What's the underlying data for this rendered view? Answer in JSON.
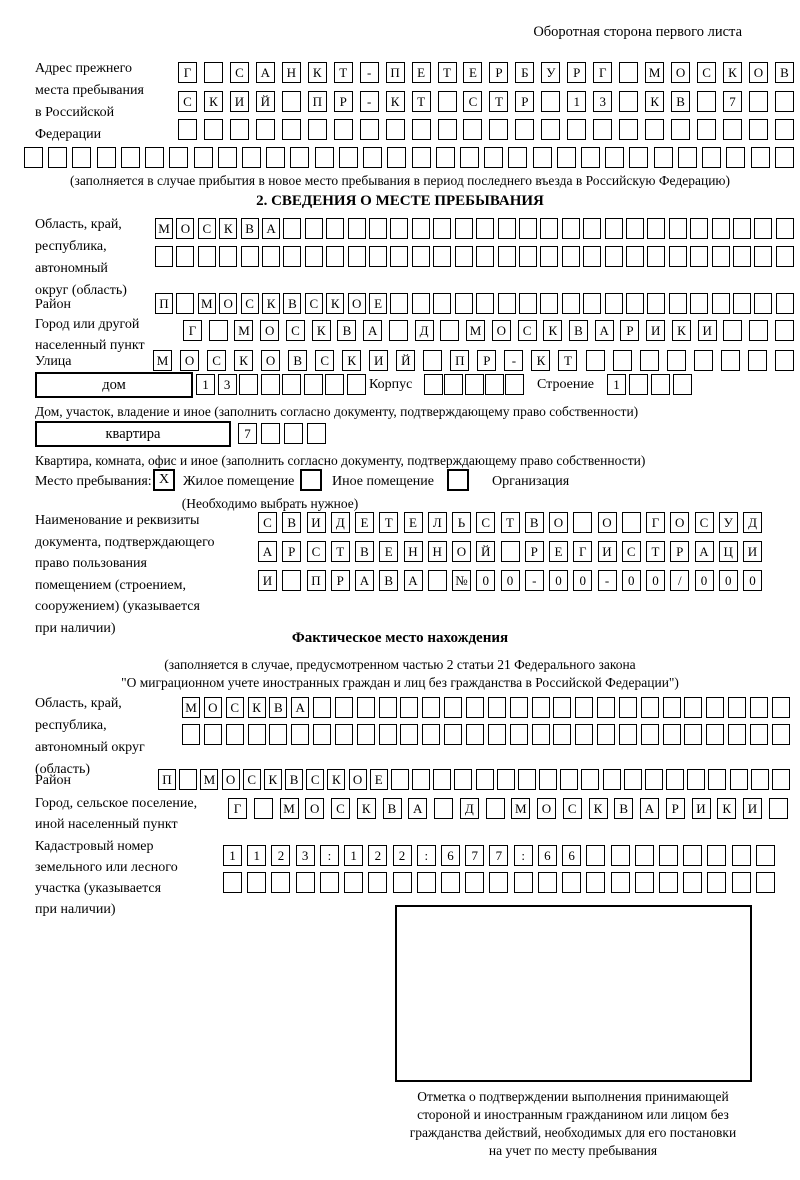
{
  "header_note": "Оборотная сторона первого листа",
  "prev_address": {
    "label": "Адрес прежнего\nместа пребывания\nв Российской\nФедерации",
    "rows": [
      {
        "n": 24,
        "text": "Г САНКТ-ПЕТЕРБУРГ МОСКОВ"
      },
      {
        "n": 24,
        "text": "СКИЙ ПР-КТ СТР 13 КВ 7"
      },
      {
        "n": 24,
        "text": ""
      },
      {
        "n": 32,
        "text": ""
      }
    ],
    "note": "(заполняется в случае прибытия в новое место пребывания в период последнего въезда в Российскую Федерацию)"
  },
  "section2": {
    "title": "2. СВЕДЕНИЯ О МЕСТЕ ПРЕБЫВАНИЯ",
    "region": {
      "label": "Область, край,\nреспублика,\nавтономный\nокруг (область)",
      "rows": [
        {
          "n": 30,
          "text": "МОСКВА"
        },
        {
          "n": 30,
          "text": ""
        }
      ]
    },
    "district": {
      "label": "Район",
      "rows": [
        {
          "n": 30,
          "text": "П МОСКВСКОЕ"
        }
      ]
    },
    "city": {
      "label": "Город или другой\nнаселенный пункт",
      "rows": [
        {
          "n": 24,
          "text": "Г МОСКВА Д МОСКВАРИКИ"
        }
      ]
    },
    "street": {
      "label": "Улица",
      "rows": [
        {
          "n": 24,
          "text": "МОСКОВСКИЙ ПР-КТ"
        }
      ]
    },
    "house": {
      "label": "дом",
      "number_row": {
        "n": 8,
        "text": "13"
      },
      "korpus_label": "Корпус",
      "korpus_row": {
        "n": 5,
        "text": ""
      },
      "stroenie_label": "Строение",
      "stroenie_row": {
        "n": 4,
        "text": "1"
      },
      "note": "Дом, участок, владение и иное (заполнить согласно документу, подтверждающему право собственности)"
    },
    "apartment": {
      "label": "квартира",
      "number_row": {
        "n": 4,
        "text": "7"
      },
      "note": "Квартира, комната, офис и иное (заполнить согласно документу, подтверждающему право собственности)"
    },
    "stay_place": {
      "label": "Место пребывания:",
      "options": [
        {
          "label": "Жилое помещение",
          "mark": "X"
        },
        {
          "label": "Иное помещение",
          "mark": ""
        },
        {
          "label": "Организация",
          "mark": ""
        }
      ],
      "note": "(Необходимо выбрать нужное)"
    },
    "doc": {
      "label": "Наименование и реквизиты\nдокумента, подтверждающего\nправо пользования\nпомещением (строением,\nсооружением) (указывается\nпри наличии)",
      "rows": [
        {
          "n": 21,
          "text": "СВИДЕТЕЛЬСТВО О ГОСУД"
        },
        {
          "n": 21,
          "text": "АРСТВЕННОЙ РЕГИСТРАЦИ"
        },
        {
          "n": 21,
          "text": "И ПРАВА №00-00-00/000"
        }
      ]
    }
  },
  "section3": {
    "title": "Фактическое место нахождения",
    "note1": "(заполняется в случае, предусмотренном частью 2 статьи 21 Федерального закона",
    "note2": "\"О миграционном учете иностранных граждан и лиц без гражданства в Российской Федерации\")",
    "region": {
      "label": "Область, край,\nреспублика,\nавтономный округ\n(область)",
      "rows": [
        {
          "n": 28,
          "text": "МОСКВА"
        },
        {
          "n": 28,
          "text": ""
        }
      ]
    },
    "district": {
      "label": "Район",
      "rows": [
        {
          "n": 30,
          "text": "П МОСКВСКОЕ"
        }
      ]
    },
    "city": {
      "label": "Город, сельское поселение,\nиной населенный пункт",
      "rows": [
        {
          "n": 22,
          "text": "Г МОСКВА Д МОСКВАРИКИ"
        }
      ]
    },
    "cadastral": {
      "label": "Кадастровый номер\nземельного или лесного\nучастка (указывается\nпри наличии)",
      "rows": [
        {
          "n": 23,
          "text": "1123:122:677:66"
        },
        {
          "n": 23,
          "text": ""
        }
      ]
    }
  },
  "stamp": {
    "caption": "Отметка о подтверждении выполнения принимающей\nстороной и иностранным гражданином или лицом без\nгражданства действий, необходимых для его постановки\nна учет по месту пребывания"
  }
}
